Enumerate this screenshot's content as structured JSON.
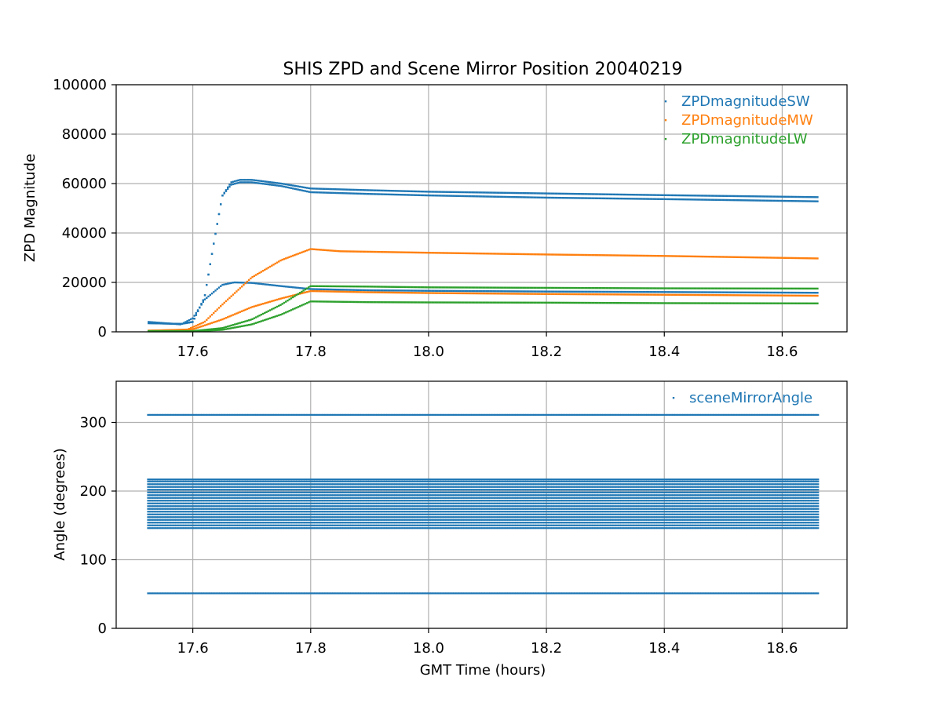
{
  "chart_data": [
    {
      "type": "scatter",
      "title": "SHIS ZPD and Scene Mirror Position 20040219",
      "xlabel": "",
      "ylabel": "ZPD Magnitude",
      "xlim": [
        17.47,
        18.71
      ],
      "ylim": [
        0,
        100000
      ],
      "xticks": [
        17.6,
        17.8,
        18.0,
        18.2,
        18.4,
        18.6
      ],
      "xtick_labels": [
        "17.6",
        "17.8",
        "18.0",
        "18.2",
        "18.4",
        "18.6"
      ],
      "yticks": [
        0,
        20000,
        40000,
        60000,
        80000,
        100000
      ],
      "ytick_labels": [
        "0",
        "20000",
        "40000",
        "60000",
        "80000",
        "100000"
      ],
      "grid": true,
      "legend_position": "top-right",
      "series": [
        {
          "name": "ZPDmagnitudeSW",
          "color": "#1f77b4",
          "tracks": [
            {
              "x": [
                17.525,
                17.58,
                17.6,
                17.62,
                17.635,
                17.65,
                17.665,
                17.68,
                17.7,
                17.75,
                17.8,
                17.9,
                18.0,
                18.2,
                18.4,
                18.66
              ],
              "y": [
                3500,
                3200,
                4000,
                14000,
                35000,
                55000,
                60500,
                61500,
                61500,
                60000,
                58000,
                57300,
                56700,
                56000,
                55300,
                54500
              ]
            },
            {
              "x": [
                17.525,
                17.58,
                17.6,
                17.62,
                17.635,
                17.65,
                17.665,
                17.68,
                17.7,
                17.75,
                17.8,
                17.9,
                18.0,
                18.2,
                18.4,
                18.66
              ],
              "y": [
                3500,
                3200,
                4000,
                14000,
                35000,
                55000,
                59500,
                60500,
                60500,
                59000,
                56500,
                55800,
                55200,
                54300,
                53700,
                52800
              ]
            },
            {
              "x": [
                17.525,
                17.58,
                17.6,
                17.62,
                17.65,
                17.67,
                17.7,
                17.75,
                17.8,
                17.9,
                18.0,
                18.2,
                18.4,
                18.66
              ],
              "y": [
                4000,
                3000,
                5500,
                13000,
                19000,
                20000,
                19800,
                18500,
                17300,
                16800,
                16600,
                16300,
                16100,
                15800
              ]
            }
          ]
        },
        {
          "name": "ZPDmagnitudeMW",
          "color": "#ff7f0e",
          "tracks": [
            {
              "x": [
                17.525,
                17.59,
                17.62,
                17.65,
                17.7,
                17.75,
                17.8,
                17.85,
                18.0,
                18.2,
                18.4,
                18.66
              ],
              "y": [
                500,
                800,
                4000,
                11000,
                22000,
                29000,
                33500,
                32600,
                32000,
                31300,
                30700,
                29700
              ]
            },
            {
              "x": [
                17.525,
                17.6,
                17.65,
                17.7,
                17.75,
                17.8,
                17.9,
                18.0,
                18.2,
                18.4,
                18.66
              ],
              "y": [
                400,
                1000,
                5000,
                10000,
                13500,
                16500,
                16000,
                15700,
                15300,
                15000,
                14600
              ]
            }
          ]
        },
        {
          "name": "ZPDmagnitudeLW",
          "color": "#2ca02c",
          "tracks": [
            {
              "x": [
                17.525,
                17.6,
                17.65,
                17.7,
                17.75,
                17.8,
                17.9,
                18.0,
                18.2,
                18.4,
                18.66
              ],
              "y": [
                300,
                300,
                1500,
                5000,
                11000,
                18500,
                18300,
                18000,
                17800,
                17600,
                17500
              ]
            },
            {
              "x": [
                17.525,
                17.6,
                17.65,
                17.7,
                17.75,
                17.8,
                17.9,
                18.0,
                18.2,
                18.4,
                18.66
              ],
              "y": [
                200,
                200,
                800,
                3000,
                7000,
                12300,
                12000,
                11900,
                11800,
                11600,
                11500
              ]
            }
          ]
        }
      ]
    },
    {
      "type": "scatter",
      "title": "",
      "xlabel": "GMT Time (hours)",
      "ylabel": "Angle (degrees)",
      "xlim": [
        17.47,
        18.71
      ],
      "ylim": [
        0,
        360
      ],
      "xticks": [
        17.6,
        17.8,
        18.0,
        18.2,
        18.4,
        18.6
      ],
      "xtick_labels": [
        "17.6",
        "17.8",
        "18.0",
        "18.2",
        "18.4",
        "18.6"
      ],
      "yticks": [
        0,
        100,
        200,
        300
      ],
      "ytick_labels": [
        "0",
        "100",
        "200",
        "300"
      ],
      "grid": true,
      "legend_position": "top-right",
      "series": [
        {
          "name": "sceneMirrorAngle",
          "color": "#1f77b4",
          "x_range": [
            17.525,
            18.66
          ],
          "levels": [
            51,
            146,
            150,
            154,
            158,
            162,
            166,
            170,
            174,
            178,
            182,
            186,
            190,
            194,
            198,
            202,
            206,
            210,
            214,
            217,
            311
          ]
        }
      ]
    }
  ]
}
